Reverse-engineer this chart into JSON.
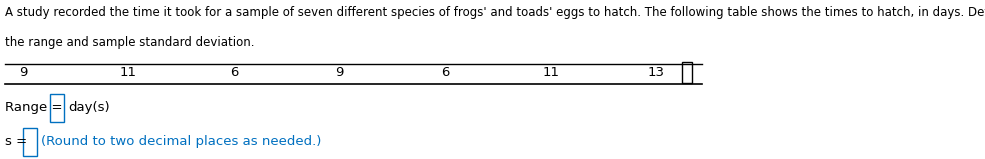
{
  "title_line1": "A study recorded the time it took for a sample of seven different species of frogs' and toads' eggs to hatch. The following table shows the times to hatch, in days. Determine",
  "title_line2": "the range and sample standard deviation.",
  "table_values": [
    "9",
    "11",
    "6",
    "9",
    "6",
    "11",
    "13"
  ],
  "range_label": "Range =",
  "range_unit": "day(s)",
  "s_label": "s =",
  "s_note": "(Round to two decimal places as needed.)",
  "bg_color": "#ffffff",
  "text_color": "#000000",
  "blue_color": "#0070c0",
  "title_fontsize": 8.5,
  "table_fontsize": 9.5,
  "label_fontsize": 9.5,
  "note_fontsize": 9.5
}
